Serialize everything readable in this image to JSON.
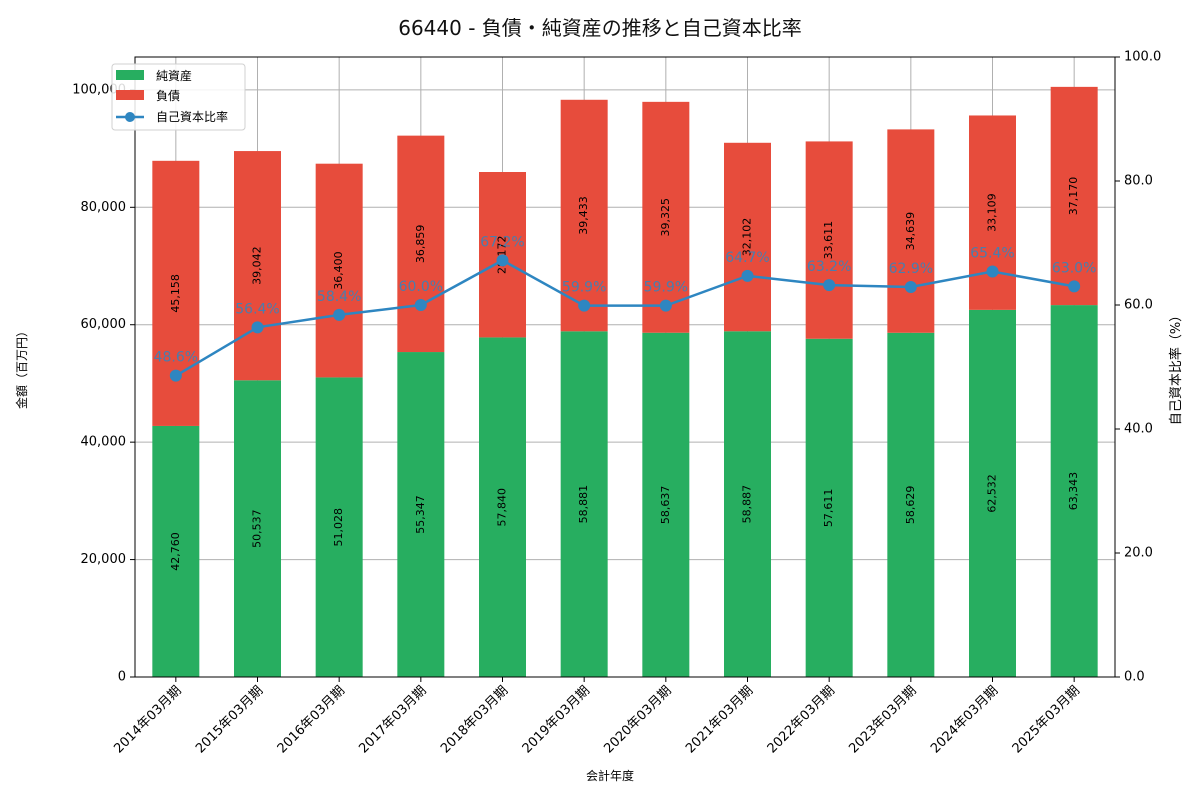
{
  "chart_data": {
    "type": "bar",
    "subtype": "stacked-bar-with-line-secondary-axis",
    "title": "66440 - 負債・純資産の推移と自己資本比率",
    "xlabel": "会計年度",
    "ylabel": "金額（百万円）",
    "y2label": "自己資本比率（%）",
    "ylim": [
      0,
      105600
    ],
    "y2lim": [
      0,
      100
    ],
    "yticks": [
      "0",
      "20,000",
      "40,000",
      "60,000",
      "80,000",
      "100,000"
    ],
    "ytick_values": [
      0,
      20000,
      40000,
      60000,
      80000,
      100000
    ],
    "y2ticks": [
      "0.0",
      "20.0",
      "40.0",
      "60.0",
      "80.0",
      "100.0"
    ],
    "y2tick_values": [
      0,
      20,
      40,
      60,
      80,
      100
    ],
    "grid": true,
    "legend_position": "upper-left",
    "categories": [
      "2014年03月期",
      "2015年03月期",
      "2016年03月期",
      "2017年03月期",
      "2018年03月期",
      "2019年03月期",
      "2020年03月期",
      "2021年03月期",
      "2022年03月期",
      "2023年03月期",
      "2024年03月期",
      "2025年03月期"
    ],
    "series": [
      {
        "name": "純資産",
        "type": "bar",
        "axis": "left",
        "color": "#27ae60",
        "values": [
          42760,
          50537,
          51028,
          55347,
          57840,
          58881,
          58637,
          58887,
          57611,
          58629,
          62532,
          63343
        ],
        "labels": [
          "42,760",
          "50,537",
          "51,028",
          "55,347",
          "57,840",
          "58,881",
          "58,637",
          "58,887",
          "57,611",
          "58,629",
          "62,532",
          "63,343"
        ]
      },
      {
        "name": "負債",
        "type": "bar",
        "axis": "left",
        "color": "#e74c3c",
        "values": [
          45158,
          39042,
          36400,
          36859,
          28172,
          39433,
          39325,
          32102,
          33611,
          34639,
          33109,
          37170
        ],
        "labels": [
          "45,158",
          "39,042",
          "36,400",
          "36,859",
          "28,172",
          "39,433",
          "39,325",
          "32,102",
          "33,611",
          "34,639",
          "33,109",
          "37,170"
        ]
      },
      {
        "name": "自己資本比率",
        "type": "line",
        "axis": "right",
        "color": "#2e86c1",
        "values": [
          48.6,
          56.4,
          58.4,
          60.0,
          67.2,
          59.9,
          59.9,
          64.7,
          63.2,
          62.9,
          65.4,
          63.0
        ],
        "labels": [
          "48.6%",
          "56.4%",
          "58.4%",
          "60.0%",
          "67.2%",
          "59.9%",
          "59.9%",
          "64.7%",
          "63.2%",
          "62.9%",
          "65.4%",
          "63.0%"
        ]
      }
    ]
  }
}
